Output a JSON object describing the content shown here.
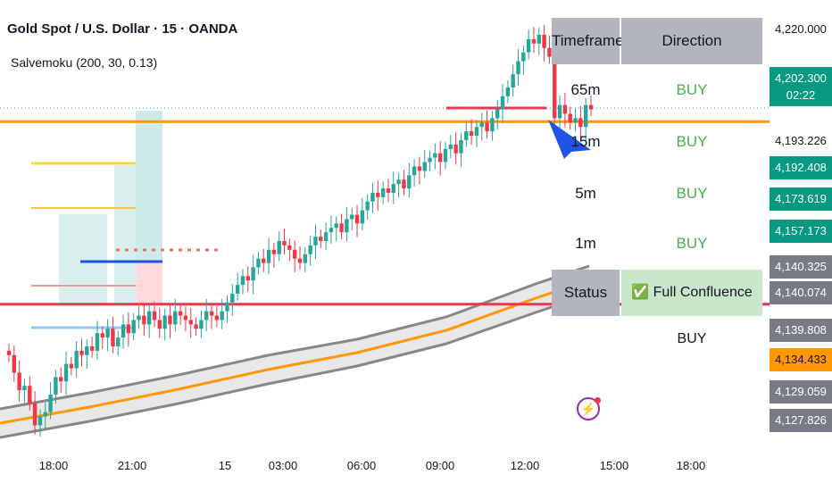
{
  "header": {
    "title": "Gold Spot / U.S. Dollar · 15 · OANDA",
    "indicator": "Salvemoku  (200, 30, 0.13)"
  },
  "colors": {
    "up": "#26a69a",
    "down": "#f23645",
    "orange": "#ff9800",
    "red_level": "#e53950",
    "blue": "#1e53e5",
    "ema_band": "#878787"
  },
  "chart_data": {
    "type": "candlestick",
    "ylim": [
      4125.2,
      4224.9
    ],
    "x_ticks": [
      "18:00",
      "21:00",
      "15",
      "03:00",
      "06:00",
      "09:00",
      "12:00",
      "15:00",
      "18:00"
    ],
    "price_labels": [
      {
        "value": "4,220.000",
        "kind": "plain"
      },
      {
        "value": "4,202.300",
        "sub": "02:22",
        "kind": "current"
      },
      {
        "value": "4,193.226",
        "kind": "plain"
      },
      {
        "value": "4,192.408",
        "kind": "green"
      },
      {
        "value": "4,173.619",
        "kind": "green"
      },
      {
        "value": "4,157.173",
        "kind": "green"
      },
      {
        "value": "4,140.325",
        "kind": "gray"
      },
      {
        "value": "4,140.074",
        "kind": "gray"
      },
      {
        "value": "4,139.808",
        "kind": "gray"
      },
      {
        "value": "4,134.433",
        "kind": "orange"
      },
      {
        "value": "4,129.059",
        "kind": "gray"
      },
      {
        "value": "4,127.826",
        "kind": "gray"
      }
    ],
    "horizontal_levels": [
      {
        "price": 4202.3,
        "style": "current-dotted"
      },
      {
        "price": 4199.2,
        "style": "orange"
      },
      {
        "price": 4157.6,
        "style": "red"
      }
    ],
    "closes": [
      4146,
      4142,
      4138,
      4139,
      4135,
      4130,
      4132,
      4133,
      4137,
      4141,
      4140,
      4144,
      4143,
      4147,
      4146,
      4148,
      4147,
      4151,
      4150,
      4152,
      4148,
      4150,
      4153,
      4151,
      4154,
      4155,
      4153,
      4156,
      4154,
      4152,
      4155,
      4153,
      4156,
      4155,
      4154,
      4153,
      4152,
      4154,
      4156,
      4155,
      4154,
      4156,
      4158,
      4160,
      4162,
      4164,
      4163,
      4166,
      4168,
      4167,
      4170,
      4169,
      4172,
      4171,
      4170,
      4168,
      4167,
      4169,
      4171,
      4173,
      4172,
      4174,
      4175,
      4176,
      4174,
      4177,
      4178,
      4176,
      4179,
      4181,
      4183,
      4182,
      4184,
      4183,
      4185,
      4186,
      4184,
      4187,
      4189,
      4188,
      4190,
      4191,
      4192,
      4190,
      4193,
      4194,
      4192,
      4195,
      4197,
      4196,
      4198,
      4199,
      4197,
      4200,
      4202,
      4205,
      4207,
      4210,
      4213,
      4215,
      4218,
      4217,
      4219,
      4216,
      4214,
      4200,
      4203,
      4201,
      4199,
      4200,
      4198,
      4203,
      4202
    ],
    "table": {
      "headers": [
        "Timeframe",
        "Direction"
      ],
      "rows": [
        {
          "tf": "65m",
          "dir": "BUY"
        },
        {
          "tf": "15m",
          "dir": "BUY"
        },
        {
          "tf": "5m",
          "dir": "BUY"
        },
        {
          "tf": "1m",
          "dir": "BUY"
        }
      ],
      "status_label": "Status",
      "status_value": "✅ Full Confluence BUY"
    }
  }
}
